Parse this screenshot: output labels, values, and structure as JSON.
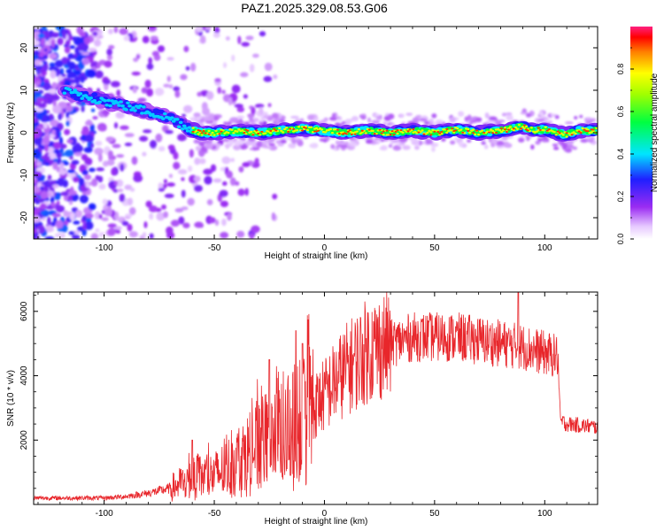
{
  "title": "PAZ1.2025.329.08.53.G06",
  "spectrogram": {
    "xlabel": "Height of straight line (km)",
    "ylabel": "Frequency (Hz)",
    "xlim": [
      -132,
      124
    ],
    "ylim": [
      -25,
      25
    ],
    "xticks": [
      -100,
      -50,
      0,
      50,
      100
    ],
    "yticks": [
      -20,
      -10,
      0,
      10,
      20
    ],
    "ridge": [
      [
        -132,
        11
      ],
      [
        -120,
        10
      ],
      [
        -112,
        9
      ],
      [
        -104,
        8
      ],
      [
        -96,
        7
      ],
      [
        -88,
        6
      ],
      [
        -80,
        5
      ],
      [
        -74,
        4
      ],
      [
        -68,
        3
      ],
      [
        -62,
        1
      ],
      [
        -56,
        0
      ],
      [
        -50,
        0
      ],
      [
        -40,
        0.3
      ],
      [
        -30,
        0
      ],
      [
        -20,
        0.5
      ],
      [
        -10,
        1
      ],
      [
        0,
        0.5
      ],
      [
        10,
        0
      ],
      [
        20,
        0.5
      ],
      [
        30,
        0
      ],
      [
        40,
        0.5
      ],
      [
        50,
        0
      ],
      [
        60,
        0.7
      ],
      [
        70,
        0
      ],
      [
        80,
        0.5
      ],
      [
        90,
        1.5
      ],
      [
        95,
        0.5
      ],
      [
        100,
        0.8
      ],
      [
        105,
        0
      ],
      [
        110,
        -0.5
      ],
      [
        115,
        0.5
      ],
      [
        124,
        0.5
      ]
    ]
  },
  "colorbar": {
    "label": "Normalized spectral amplitude",
    "ticks": [
      "0.0",
      "0.2",
      "0.4",
      "0.6",
      "0.8"
    ],
    "tick_values": [
      0.0,
      0.2,
      0.4,
      0.6,
      0.8
    ],
    "range": [
      0,
      1
    ]
  },
  "snr": {
    "xlabel": "Height of straight line (km)",
    "ylabel": "SNR (10 * v/v)",
    "xlim": [
      -132,
      124
    ],
    "ylim": [
      0,
      6600
    ],
    "xticks": [
      -100,
      -50,
      0,
      50,
      100
    ],
    "yticks": [
      2000,
      4000,
      6000
    ],
    "line_color": "#e8262b",
    "envelope_x": [
      -132,
      -100,
      -90,
      -80,
      -70,
      -60,
      -50,
      -40,
      -30,
      -20,
      -10,
      0,
      10,
      20,
      30,
      40,
      50,
      60,
      70,
      80,
      90,
      100,
      106,
      107,
      110,
      124
    ],
    "envelope_y": [
      200,
      200,
      250,
      350,
      500,
      800,
      900,
      1300,
      1800,
      2200,
      2600,
      3400,
      4200,
      4800,
      5000,
      5200,
      5200,
      5200,
      5100,
      5000,
      4900,
      4700,
      4600,
      2600,
      2500,
      2400
    ],
    "spikes": [
      [
        -60,
        2000
      ],
      [
        -25,
        4500
      ],
      [
        -13,
        5400
      ],
      [
        -10,
        5000
      ],
      [
        88,
        6600
      ]
    ]
  }
}
